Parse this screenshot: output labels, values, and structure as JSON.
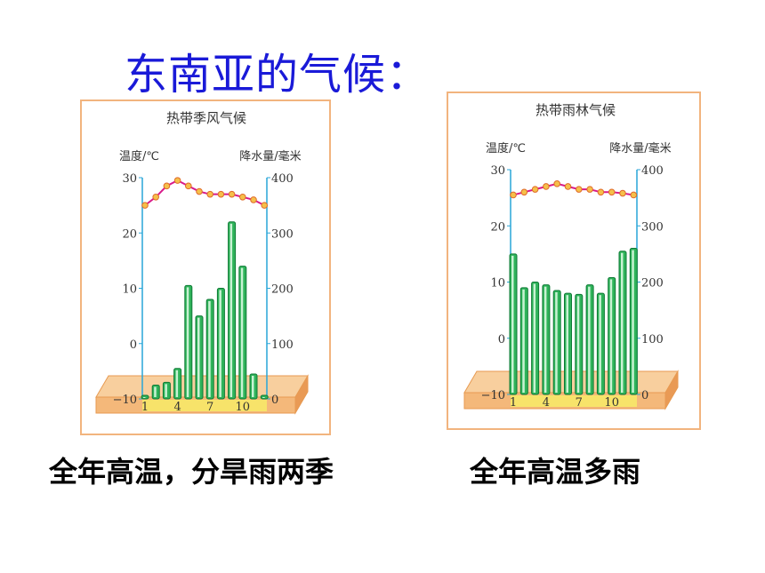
{
  "page": {
    "title": "东南亚的气候：",
    "captions": [
      "全年高温，分旱雨两季",
      "全年高温多雨"
    ]
  },
  "colors": {
    "title": "#1a1ad8",
    "bar_fill": "#2fb35a",
    "bar_stroke": "#0e7a35",
    "temp_line": "#d81a8a",
    "temp_marker": "#f5c04a",
    "axis": "#28a6d8",
    "base_plate": "#f4b87a",
    "panel_border": "#f2b47e"
  },
  "chart_data": [
    {
      "type": "bar+line",
      "title": "热带季风气候",
      "y_left_label": "温度/℃",
      "y_right_label": "降水量/毫米",
      "y_left_ticks": [
        "30",
        "20",
        "10",
        "0",
        "−10"
      ],
      "y_right_ticks": [
        "400",
        "300",
        "200",
        "100",
        "0"
      ],
      "y_left_range": [
        -10,
        30
      ],
      "y_right_range": [
        0,
        400
      ],
      "x_ticks": [
        "1",
        "4",
        "7",
        "10"
      ],
      "months": [
        1,
        2,
        3,
        4,
        5,
        6,
        7,
        8,
        9,
        10,
        11,
        12
      ],
      "precipitation": [
        5,
        25,
        30,
        55,
        205,
        150,
        180,
        200,
        320,
        240,
        45,
        5
      ],
      "temperature": [
        25,
        26.5,
        28.5,
        29.5,
        28.5,
        27.5,
        27,
        27,
        27,
        26.5,
        26,
        25
      ]
    },
    {
      "type": "bar+line",
      "title": "热带雨林气候",
      "y_left_label": "温度/℃",
      "y_right_label": "降水量/毫米",
      "y_left_ticks": [
        "30",
        "20",
        "10",
        "0",
        "−10"
      ],
      "y_right_ticks": [
        "400",
        "300",
        "200",
        "100",
        "0"
      ],
      "y_left_range": [
        -10,
        30
      ],
      "y_right_range": [
        0,
        400
      ],
      "x_ticks": [
        "1",
        "4",
        "7",
        "10"
      ],
      "months": [
        1,
        2,
        3,
        4,
        5,
        6,
        7,
        8,
        9,
        10,
        11,
        12
      ],
      "precipitation": [
        250,
        190,
        200,
        195,
        185,
        180,
        178,
        195,
        180,
        208,
        255,
        260
      ],
      "temperature": [
        25.5,
        26,
        26.5,
        27,
        27.5,
        27,
        26.5,
        26.5,
        26,
        26,
        25.8,
        25.5
      ]
    }
  ]
}
